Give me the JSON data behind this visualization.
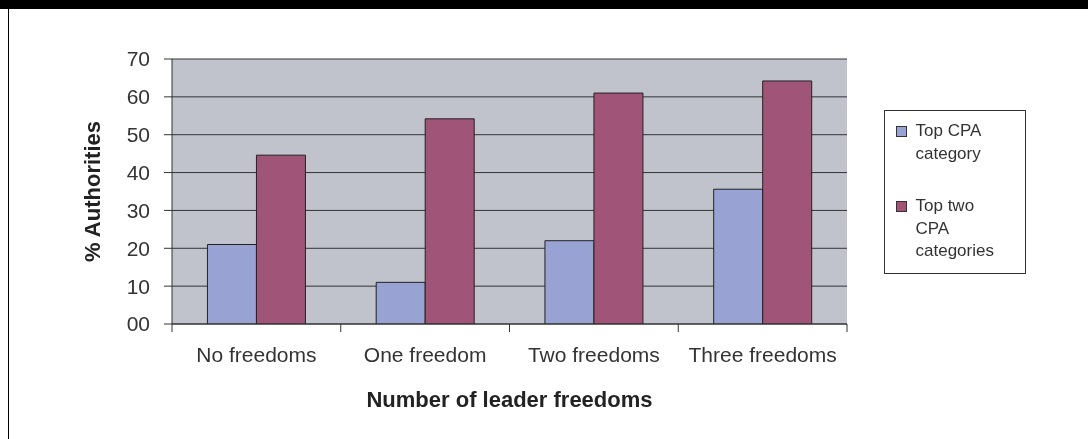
{
  "chart_data": {
    "type": "bar",
    "xlabel": "Number of leader freedoms",
    "ylabel": "% Authorities",
    "categories": [
      "No freedoms",
      "One freedom",
      "Two freedoms",
      "Three freedoms"
    ],
    "series": [
      {
        "name": "Top CPA category",
        "color": "#99a3d3",
        "values": [
          21,
          11,
          22,
          35.6
        ]
      },
      {
        "name": "Top two CPA categories",
        "color": "#a05478",
        "values": [
          44.6,
          54.2,
          61,
          64.2
        ]
      }
    ],
    "ylim": [
      0,
      70
    ],
    "yticks": [
      {
        "value": 0,
        "label": "00"
      },
      10,
      20,
      30,
      40,
      50,
      60,
      70
    ],
    "grid": "y",
    "legend": "right"
  }
}
